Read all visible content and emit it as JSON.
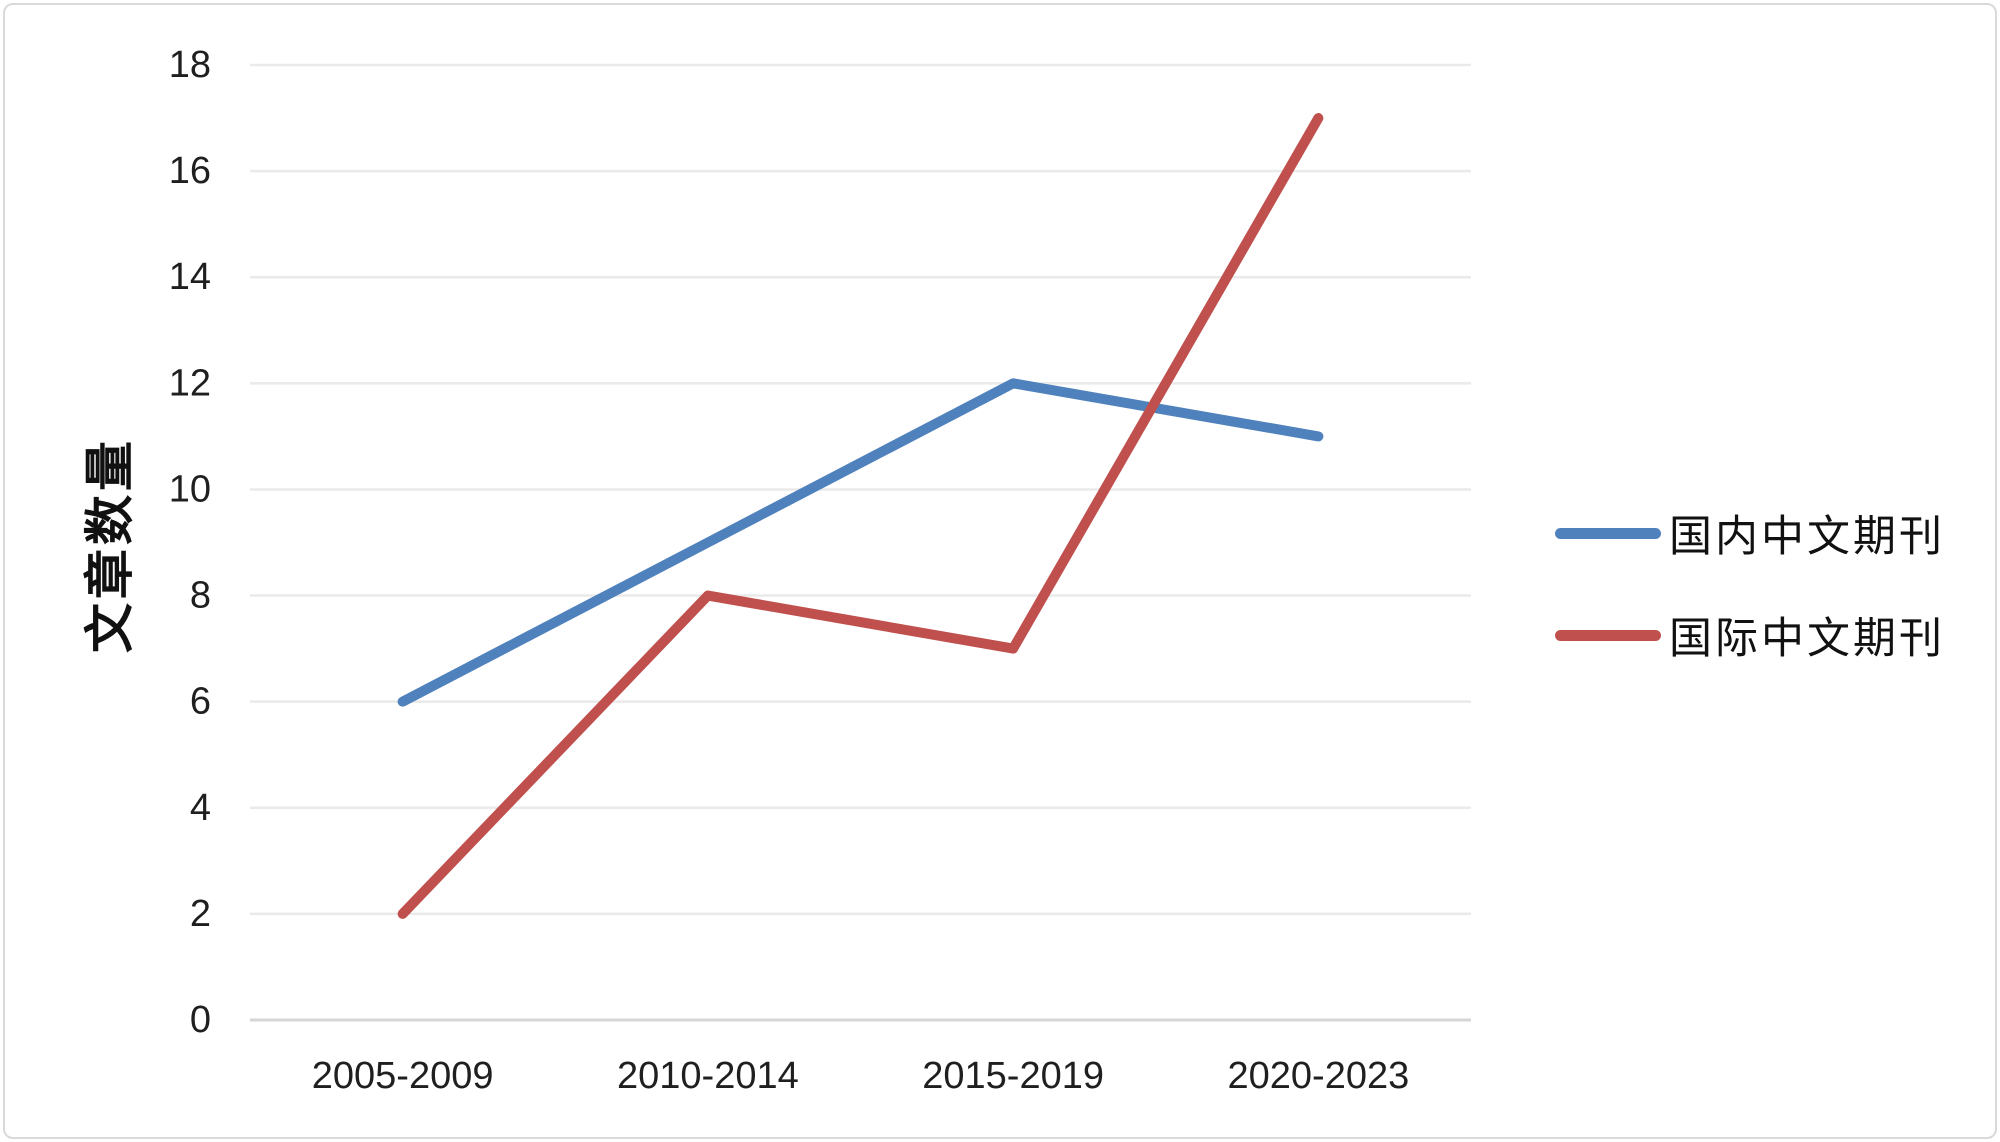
{
  "chart_data": {
    "type": "line",
    "categories": [
      "2005-2009",
      "2010-2014",
      "2015-2019",
      "2020-2023"
    ],
    "series": [
      {
        "name": "国内中文期刊",
        "color": "#4F81BD",
        "values": [
          6,
          9,
          12,
          11
        ]
      },
      {
        "name": "国际中文期刊",
        "color": "#C0504D",
        "values": [
          2,
          8,
          7,
          17
        ]
      }
    ],
    "title": "",
    "xlabel": "",
    "ylabel": "文章数量",
    "ylim": [
      0,
      18
    ],
    "yticks": [
      0,
      2,
      4,
      6,
      8,
      10,
      12,
      14,
      16,
      18
    ],
    "grid": true,
    "legend_position": "right"
  },
  "colors": {
    "gridline": "#EAEAEA",
    "axis_line": "#D6D6D6",
    "frame_border": "#D9D9D9",
    "text": "#1f1f1f"
  }
}
